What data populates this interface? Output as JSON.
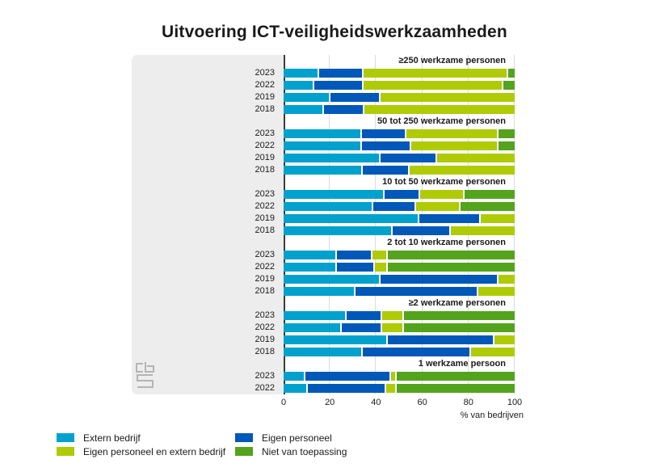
{
  "title": "Uitvoering ICT-veiligheidswerkzaamheden",
  "colors": {
    "extern_bedrijf": "#00a1cd",
    "eigen_personeel": "#0058b8",
    "eigen_personeel_en_extern_bedrijf": "#afcb05",
    "niet_van_toepassing": "#53a31d",
    "panel": "#ededed",
    "gridline": "#dcdcdc",
    "axis": "#3a3a3a"
  },
  "legend": [
    {
      "label": "Extern bedrijf",
      "color": "#00a1cd"
    },
    {
      "label": "Eigen personeel",
      "color": "#0058b8"
    },
    {
      "label": "Eigen personeel en extern bedrijf",
      "color": "#afcb05"
    },
    {
      "label": "Niet van toepassing",
      "color": "#53a31d"
    }
  ],
  "xaxis": {
    "ticks": [
      0,
      20,
      40,
      60,
      80,
      100
    ],
    "label": "% van bedrijven",
    "min": 0,
    "max": 100
  },
  "logo": {
    "name": "cbs-logo"
  },
  "chart_data": {
    "type": "bar",
    "orientation": "horizontal",
    "stacked": true,
    "title": "Uitvoering ICT-veiligheidswerkzaamheden",
    "xlabel": "% van bedrijven",
    "xlim": [
      0,
      100
    ],
    "grid": true,
    "legend_position": "bottom",
    "series_order": [
      "Extern bedrijf",
      "Eigen personeel",
      "Eigen personeel en extern bedrijf",
      "Niet van toepassing"
    ],
    "series_colors": [
      "#00a1cd",
      "#0058b8",
      "#afcb05",
      "#53a31d"
    ],
    "groups": [
      {
        "label": "≥250 werkzame personen",
        "rows": [
          {
            "year": "2023",
            "values": [
              15,
              19,
              63,
              3
            ]
          },
          {
            "year": "2022",
            "values": [
              13,
              21,
              61,
              5
            ]
          },
          {
            "year": "2019",
            "values": [
              20,
              21,
              59,
              0
            ]
          },
          {
            "year": "2018",
            "values": [
              17,
              17,
              66,
              0
            ]
          }
        ]
      },
      {
        "label": "50 tot 250 werkzame personen",
        "rows": [
          {
            "year": "2023",
            "values": [
              34,
              19,
              40,
              7
            ]
          },
          {
            "year": "2022",
            "values": [
              34,
              21,
              38,
              7
            ]
          },
          {
            "year": "2019",
            "values": [
              42,
              24,
              34,
              0
            ]
          },
          {
            "year": "2018",
            "values": [
              34,
              20,
              46,
              0
            ]
          }
        ]
      },
      {
        "label": "10 tot 50 werkzame personen",
        "rows": [
          {
            "year": "2023",
            "values": [
              44,
              15,
              19,
              22
            ]
          },
          {
            "year": "2022",
            "values": [
              39,
              18,
              19,
              24
            ]
          },
          {
            "year": "2019",
            "values": [
              59,
              26,
              15,
              0
            ]
          },
          {
            "year": "2018",
            "values": [
              47,
              25,
              28,
              0
            ]
          }
        ]
      },
      {
        "label": "2 tot 10 werkzame personen",
        "rows": [
          {
            "year": "2023",
            "values": [
              23,
              15,
              6,
              56
            ]
          },
          {
            "year": "2022",
            "values": [
              23,
              16,
              5,
              56
            ]
          },
          {
            "year": "2019",
            "values": [
              42,
              51,
              7,
              0
            ]
          },
          {
            "year": "2018",
            "values": [
              31,
              53,
              16,
              0
            ]
          }
        ]
      },
      {
        "label": "≥2 werkzame personen",
        "rows": [
          {
            "year": "2023",
            "values": [
              27,
              15,
              9,
              49
            ]
          },
          {
            "year": "2022",
            "values": [
              25,
              17,
              9,
              49
            ]
          },
          {
            "year": "2019",
            "values": [
              45,
              46,
              9,
              0
            ]
          },
          {
            "year": "2018",
            "values": [
              34,
              47,
              19,
              0
            ]
          }
        ]
      },
      {
        "label": "1 werkzame persoon",
        "rows": [
          {
            "year": "2023",
            "values": [
              9,
              37,
              2,
              52
            ]
          },
          {
            "year": "2022",
            "values": [
              10,
              34,
              4,
              52
            ]
          }
        ]
      }
    ]
  }
}
